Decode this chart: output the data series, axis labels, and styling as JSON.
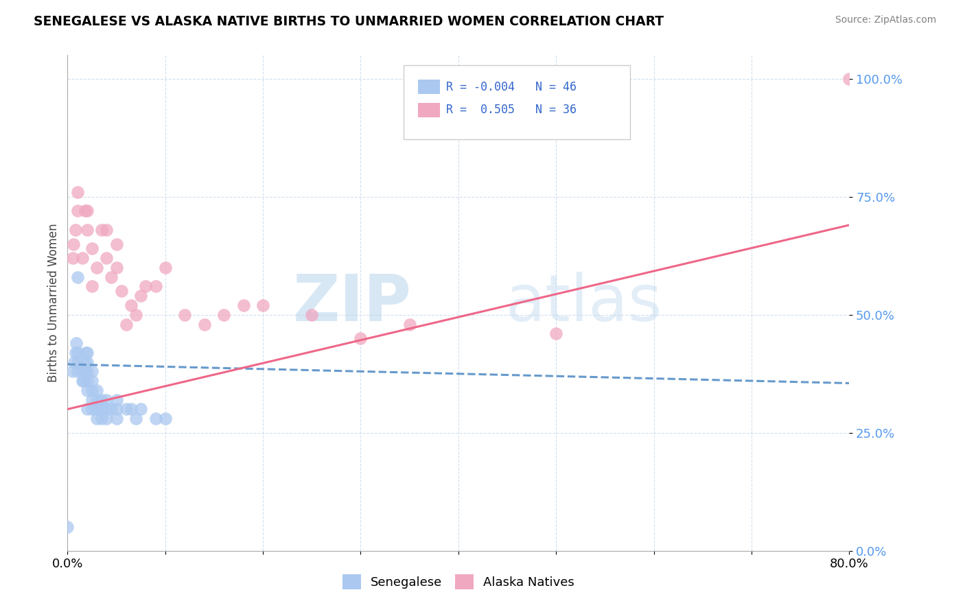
{
  "title": "SENEGALESE VS ALASKA NATIVE BIRTHS TO UNMARRIED WOMEN CORRELATION CHART",
  "source": "Source: ZipAtlas.com",
  "ylabel": "Births to Unmarried Women",
  "xlim": [
    0.0,
    0.8
  ],
  "ylim": [
    0.0,
    1.05
  ],
  "yticks": [
    0.0,
    0.25,
    0.5,
    0.75,
    1.0
  ],
  "ytick_labels": [
    "0.0%",
    "25.0%",
    "50.0%",
    "75.0%",
    "100.0%"
  ],
  "xtick_positions": [
    0.0,
    0.1,
    0.2,
    0.3,
    0.4,
    0.5,
    0.6,
    0.7,
    0.8
  ],
  "background_color": "#ffffff",
  "watermark_zip": "ZIP",
  "watermark_atlas": "atlas",
  "senegalese_color": "#aac8f0",
  "alaska_color": "#f0a8c0",
  "trend_senegalese_color": "#6699cc",
  "trend_alaska_color": "#ee6688",
  "senegalese_label": "Senegalese",
  "alaska_label": "Alaska Natives",
  "senegalese_x": [
    0.0,
    0.005,
    0.007,
    0.008,
    0.009,
    0.01,
    0.01,
    0.01,
    0.01,
    0.015,
    0.015,
    0.016,
    0.017,
    0.018,
    0.019,
    0.02,
    0.02,
    0.02,
    0.02,
    0.02,
    0.02,
    0.025,
    0.025,
    0.025,
    0.025,
    0.025,
    0.03,
    0.03,
    0.03,
    0.03,
    0.035,
    0.035,
    0.035,
    0.04,
    0.04,
    0.04,
    0.045,
    0.05,
    0.05,
    0.05,
    0.06,
    0.065,
    0.07,
    0.075,
    0.09,
    0.1
  ],
  "senegalese_y": [
    0.05,
    0.38,
    0.4,
    0.42,
    0.44,
    0.38,
    0.4,
    0.42,
    0.58,
    0.36,
    0.38,
    0.36,
    0.38,
    0.4,
    0.42,
    0.3,
    0.34,
    0.36,
    0.38,
    0.4,
    0.42,
    0.3,
    0.32,
    0.34,
    0.36,
    0.38,
    0.28,
    0.3,
    0.32,
    0.34,
    0.28,
    0.3,
    0.32,
    0.28,
    0.3,
    0.32,
    0.3,
    0.28,
    0.3,
    0.32,
    0.3,
    0.3,
    0.28,
    0.3,
    0.28,
    0.28
  ],
  "alaska_x": [
    0.005,
    0.006,
    0.008,
    0.01,
    0.01,
    0.015,
    0.018,
    0.02,
    0.02,
    0.025,
    0.025,
    0.03,
    0.035,
    0.04,
    0.04,
    0.045,
    0.05,
    0.05,
    0.055,
    0.06,
    0.065,
    0.07,
    0.075,
    0.08,
    0.09,
    0.1,
    0.12,
    0.14,
    0.16,
    0.18,
    0.2,
    0.25,
    0.3,
    0.35,
    0.5,
    0.8
  ],
  "alaska_y": [
    0.62,
    0.65,
    0.68,
    0.72,
    0.76,
    0.62,
    0.72,
    0.68,
    0.72,
    0.56,
    0.64,
    0.6,
    0.68,
    0.62,
    0.68,
    0.58,
    0.6,
    0.65,
    0.55,
    0.48,
    0.52,
    0.5,
    0.54,
    0.56,
    0.56,
    0.6,
    0.5,
    0.48,
    0.5,
    0.52,
    0.52,
    0.5,
    0.45,
    0.48,
    0.46,
    1.0
  ],
  "senegalese_trend_x": [
    0.0,
    0.8
  ],
  "senegalese_trend_y": [
    0.395,
    0.355
  ],
  "alaska_trend_x": [
    0.0,
    0.8
  ],
  "alaska_trend_y": [
    0.3,
    0.69
  ]
}
